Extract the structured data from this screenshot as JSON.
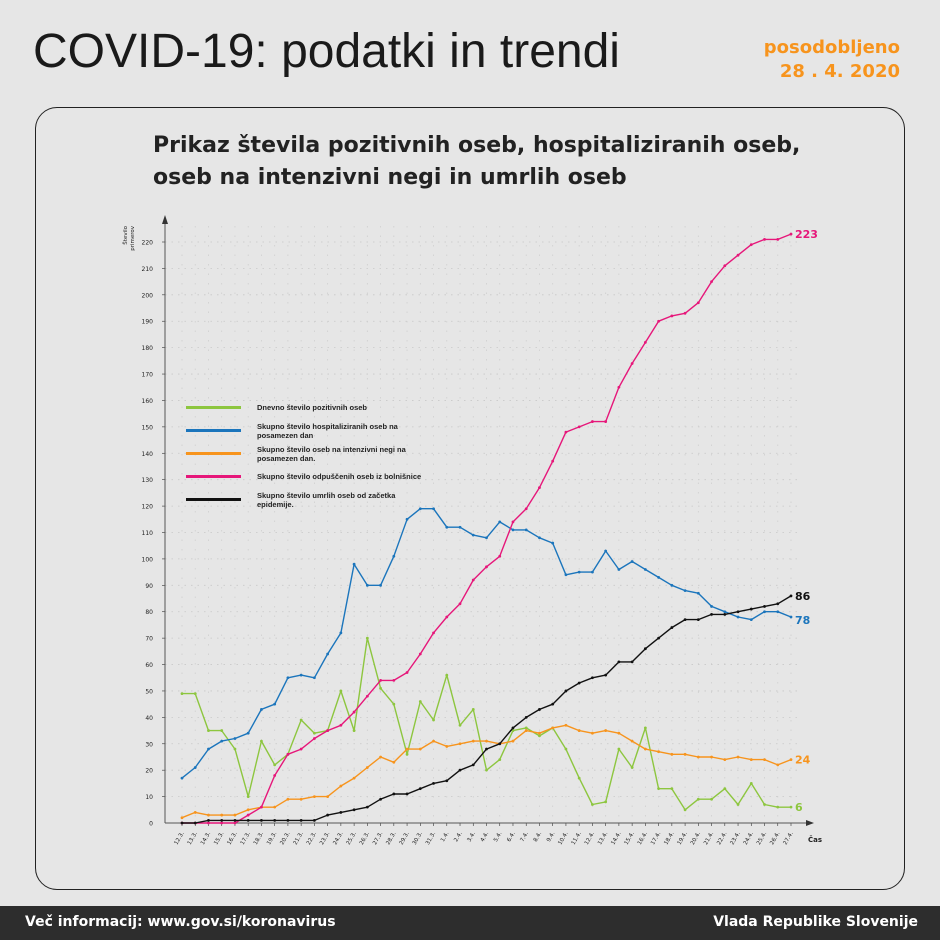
{
  "header": {
    "title": "COVID-19: podatki in trendi",
    "updated_label": "posodobljeno",
    "updated_date": "28 . 4. 2020"
  },
  "footer": {
    "info": "Več informacij: www.gov.si/koronavirus",
    "org": "Vlada Republike Slovenije"
  },
  "chart_data": {
    "type": "line",
    "title": "Prikaz števila pozitivnih oseb, hospitaliziranih oseb, oseb na intenzivni negi in umrlih oseb",
    "xlabel": "Čas",
    "ylabel": "Število primerov",
    "ylim": [
      0,
      220
    ],
    "yticks": [
      0,
      10,
      20,
      30,
      40,
      50,
      60,
      70,
      80,
      90,
      100,
      110,
      120,
      130,
      140,
      150,
      160,
      170,
      180,
      190,
      200,
      210,
      220
    ],
    "grid": true,
    "legend_position": "upper-left",
    "x": [
      "12.3.",
      "13.3.",
      "14.3.",
      "15.3.",
      "16.3.",
      "17.3.",
      "18.3.",
      "19.3.",
      "20.3.",
      "21.3.",
      "22.3.",
      "23.3.",
      "24.3.",
      "25.3.",
      "26.3.",
      "27.3.",
      "28.3.",
      "29.3.",
      "30.3.",
      "31.3.",
      "1.4.",
      "2.4.",
      "3.4.",
      "4.4.",
      "5.4.",
      "6.4.",
      "7.4.",
      "8.4.",
      "9.4.",
      "10.4.",
      "11.4.",
      "12.4.",
      "13.4.",
      "14.4.",
      "15.4.",
      "16.4.",
      "17.4.",
      "18.4.",
      "19.4.",
      "20.4.",
      "21.4.",
      "22.4.",
      "23.4.",
      "24.4.",
      "25.4.",
      "26.4.",
      "27.4."
    ],
    "series": [
      {
        "name": "Dnevno število pozitivnih oseb",
        "color": "#8dc63f",
        "end_label": "6",
        "values": [
          49,
          49,
          35,
          35,
          28,
          10,
          31,
          22,
          26,
          39,
          34,
          35,
          50,
          35,
          70,
          51,
          45,
          26,
          46,
          39,
          56,
          37,
          43,
          20,
          24,
          35,
          36,
          33,
          36,
          28,
          17,
          7,
          8,
          28,
          21,
          36,
          13,
          13,
          5,
          9,
          9,
          13,
          7,
          15,
          7,
          6,
          6
        ]
      },
      {
        "name": "Skupno število hospitaliziranih oseb na posamezen dan",
        "color": "#1b75bc",
        "end_label": "78",
        "values": [
          17,
          21,
          28,
          31,
          32,
          34,
          43,
          45,
          55,
          56,
          55,
          64,
          72,
          98,
          90,
          90,
          101,
          115,
          119,
          119,
          112,
          112,
          109,
          108,
          114,
          111,
          111,
          108,
          106,
          94,
          95,
          95,
          103,
          96,
          99,
          96,
          93,
          90,
          88,
          87,
          82,
          80,
          78,
          77,
          80,
          80,
          78
        ]
      },
      {
        "name": "Skupno število oseb na intenzivni negi na posamezen dan.",
        "color": "#f7941d",
        "end_label": "24",
        "values": [
          2,
          4,
          3,
          3,
          3,
          5,
          6,
          6,
          9,
          9,
          10,
          10,
          14,
          17,
          21,
          25,
          23,
          28,
          28,
          31,
          29,
          30,
          31,
          31,
          30,
          31,
          35,
          34,
          36,
          37,
          35,
          34,
          35,
          34,
          31,
          28,
          27,
          26,
          26,
          25,
          25,
          24,
          25,
          24,
          24,
          22,
          24
        ]
      },
      {
        "name": "Skupno število odpuščenih oseb iz bolnišnice",
        "color": "#e6177a",
        "end_label": "223",
        "values": [
          0,
          0,
          0,
          0,
          0,
          3,
          6,
          18,
          26,
          28,
          32,
          35,
          37,
          42,
          48,
          54,
          54,
          57,
          64,
          72,
          78,
          83,
          92,
          97,
          101,
          114,
          119,
          127,
          137,
          148,
          150,
          152,
          152,
          165,
          174,
          182,
          190,
          192,
          193,
          197,
          205,
          211,
          215,
          219,
          221,
          221,
          223
        ]
      },
      {
        "name": "Skupno število umrlih oseb od začetka epidemije.",
        "color": "#111111",
        "end_label": "86",
        "values": [
          0,
          0,
          1,
          1,
          1,
          1,
          1,
          1,
          1,
          1,
          1,
          3,
          4,
          5,
          6,
          9,
          11,
          11,
          13,
          15,
          16,
          20,
          22,
          28,
          30,
          36,
          40,
          43,
          45,
          50,
          53,
          55,
          56,
          61,
          61,
          66,
          70,
          74,
          77,
          77,
          79,
          79,
          80,
          81,
          82,
          83,
          86
        ]
      }
    ]
  }
}
